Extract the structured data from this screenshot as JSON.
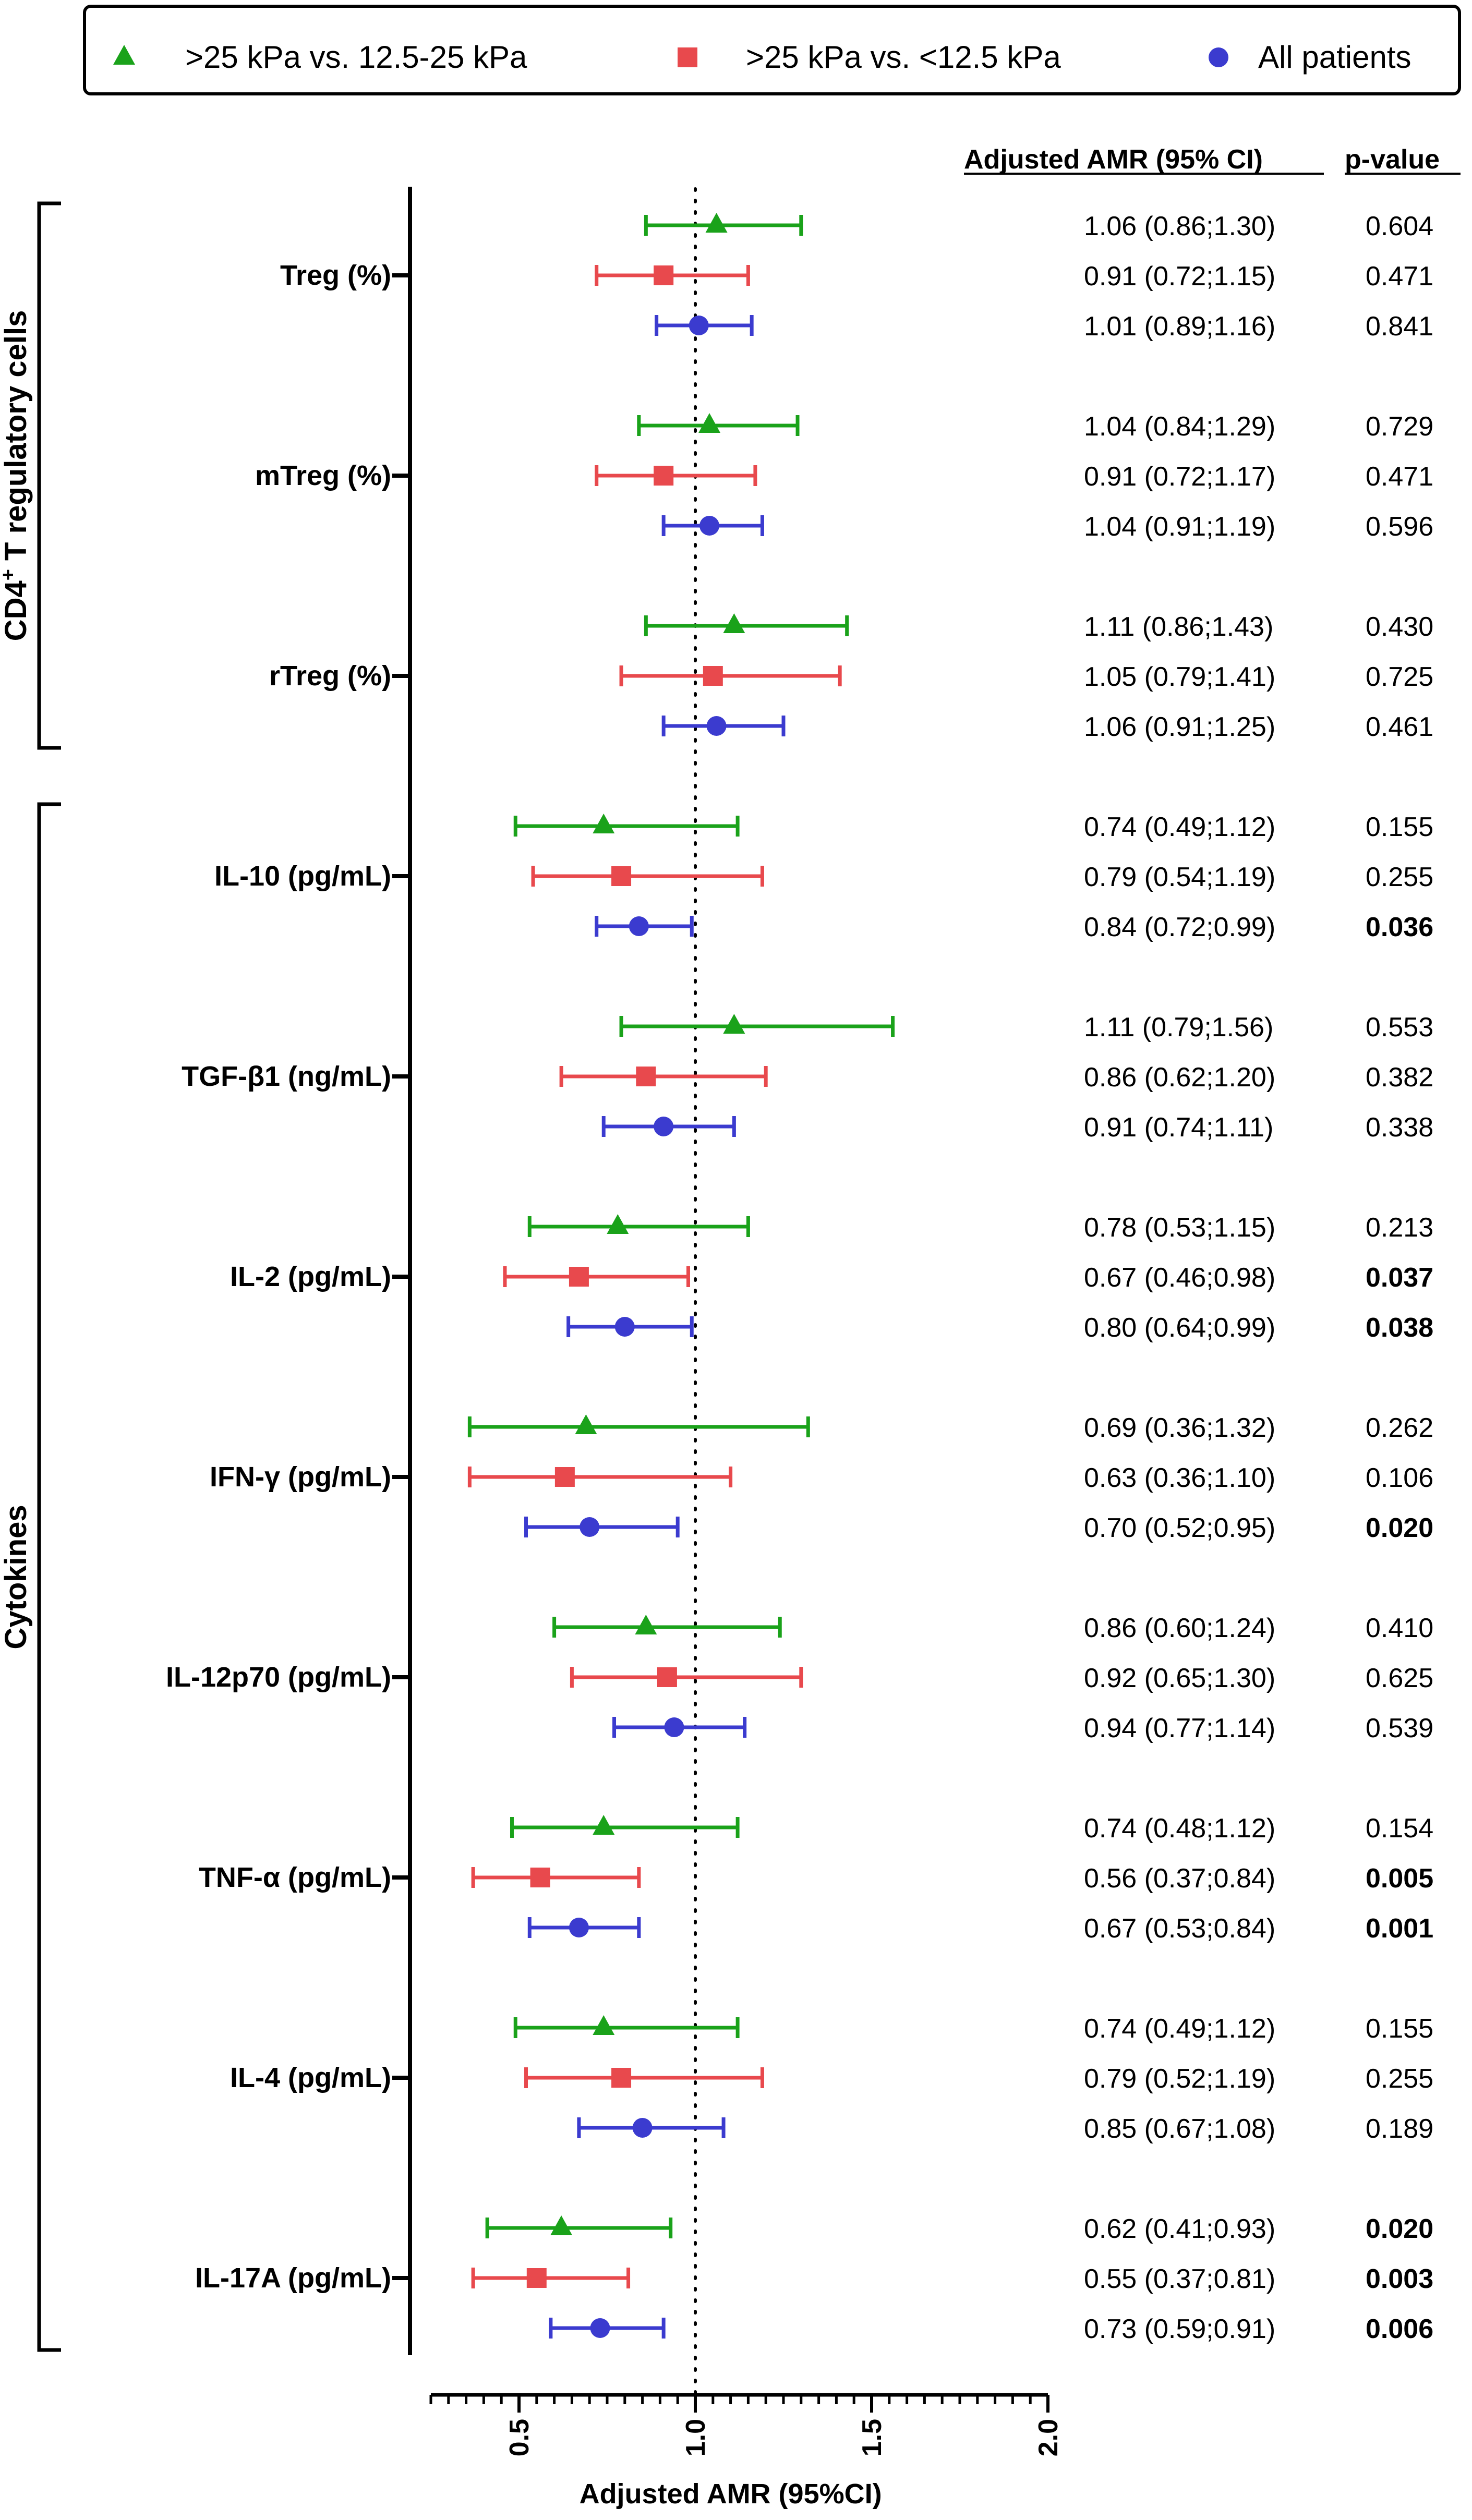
{
  "chart_data": {
    "type": "forest",
    "xlabel": "Adjusted AMR (95%CI)",
    "xlim": [
      0.25,
      2.0
    ],
    "xticks": [
      0.5,
      1.0,
      1.5,
      2.0
    ],
    "xtick_labels": [
      "0.5",
      "1.0",
      "1.5",
      "2.0"
    ],
    "minor_tick_step": 0.05,
    "reference_line": 1.0,
    "column_headers": {
      "amr": "Adjusted AMR (95% CI)",
      "p": "p-value"
    },
    "legend": [
      {
        "name": ">25 kPa vs. 12.5-25 kPa",
        "marker": "triangle",
        "color": "#1aa21a"
      },
      {
        "name": ">25 kPa vs. <12.5 kPa",
        "marker": "square",
        "color": "#e8494d"
      },
      {
        "name": "All patients",
        "marker": "circle",
        "color": "#3b3bcf"
      }
    ],
    "groups": [
      {
        "name": "CD4",
        "sup": "+",
        "rest": " T regulatory cells",
        "n_rows": 3
      },
      {
        "name": "Cytokines",
        "sup": "",
        "rest": "",
        "n_rows": 8
      }
    ],
    "rows": [
      {
        "label": "Treg (%)",
        "estimates": [
          {
            "est": 1.06,
            "lo": 0.86,
            "hi": 1.3,
            "text": "1.06 (0.86;1.30)",
            "p": "0.604",
            "sig": false
          },
          {
            "est": 0.91,
            "lo": 0.72,
            "hi": 1.15,
            "text": "0.91 (0.72;1.15)",
            "p": "0.471",
            "sig": false
          },
          {
            "est": 1.01,
            "lo": 0.89,
            "hi": 1.16,
            "text": "1.01 (0.89;1.16)",
            "p": "0.841",
            "sig": false
          }
        ]
      },
      {
        "label": "mTreg (%)",
        "estimates": [
          {
            "est": 1.04,
            "lo": 0.84,
            "hi": 1.29,
            "text": "1.04 (0.84;1.29)",
            "p": "0.729",
            "sig": false
          },
          {
            "est": 0.91,
            "lo": 0.72,
            "hi": 1.17,
            "text": "0.91 (0.72;1.17)",
            "p": "0.471",
            "sig": false
          },
          {
            "est": 1.04,
            "lo": 0.91,
            "hi": 1.19,
            "text": "1.04 (0.91;1.19)",
            "p": "0.596",
            "sig": false
          }
        ]
      },
      {
        "label": "rTreg (%)",
        "estimates": [
          {
            "est": 1.11,
            "lo": 0.86,
            "hi": 1.43,
            "text": "1.11 (0.86;1.43)",
            "p": "0.430",
            "sig": false
          },
          {
            "est": 1.05,
            "lo": 0.79,
            "hi": 1.41,
            "text": "1.05 (0.79;1.41)",
            "p": "0.725",
            "sig": false
          },
          {
            "est": 1.06,
            "lo": 0.91,
            "hi": 1.25,
            "text": "1.06 (0.91;1.25)",
            "p": "0.461",
            "sig": false
          }
        ]
      },
      {
        "label": "IL-10 (pg/mL)",
        "estimates": [
          {
            "est": 0.74,
            "lo": 0.49,
            "hi": 1.12,
            "text": "0.74 (0.49;1.12)",
            "p": "0.155",
            "sig": false
          },
          {
            "est": 0.79,
            "lo": 0.54,
            "hi": 1.19,
            "text": "0.79 (0.54;1.19)",
            "p": "0.255",
            "sig": false
          },
          {
            "est": 0.84,
            "lo": 0.72,
            "hi": 0.99,
            "text": "0.84 (0.72;0.99)",
            "p": "0.036",
            "sig": true
          }
        ]
      },
      {
        "label": "TGF-β1 (ng/mL)",
        "estimates": [
          {
            "est": 1.11,
            "lo": 0.79,
            "hi": 1.56,
            "text": "1.11 (0.79;1.56)",
            "p": "0.553",
            "sig": false
          },
          {
            "est": 0.86,
            "lo": 0.62,
            "hi": 1.2,
            "text": "0.86 (0.62;1.20)",
            "p": "0.382",
            "sig": false
          },
          {
            "est": 0.91,
            "lo": 0.74,
            "hi": 1.11,
            "text": "0.91 (0.74;1.11)",
            "p": "0.338",
            "sig": false
          }
        ]
      },
      {
        "label": "IL-2 (pg/mL)",
        "estimates": [
          {
            "est": 0.78,
            "lo": 0.53,
            "hi": 1.15,
            "text": "0.78 (0.53;1.15)",
            "p": "0.213",
            "sig": false
          },
          {
            "est": 0.67,
            "lo": 0.46,
            "hi": 0.98,
            "text": "0.67 (0.46;0.98)",
            "p": "0.037",
            "sig": true
          },
          {
            "est": 0.8,
            "lo": 0.64,
            "hi": 0.99,
            "text": "0.80 (0.64;0.99)",
            "p": "0.038",
            "sig": true
          }
        ]
      },
      {
        "label": "IFN-γ (pg/mL)",
        "estimates": [
          {
            "est": 0.69,
            "lo": 0.36,
            "hi": 1.32,
            "text": "0.69 (0.36;1.32)",
            "p": "0.262",
            "sig": false
          },
          {
            "est": 0.63,
            "lo": 0.36,
            "hi": 1.1,
            "text": "0.63 (0.36;1.10)",
            "p": "0.106",
            "sig": false
          },
          {
            "est": 0.7,
            "lo": 0.52,
            "hi": 0.95,
            "text": "0.70 (0.52;0.95)",
            "p": "0.020",
            "sig": true
          }
        ]
      },
      {
        "label": "IL-12p70 (pg/mL)",
        "estimates": [
          {
            "est": 0.86,
            "lo": 0.6,
            "hi": 1.24,
            "text": "0.86 (0.60;1.24)",
            "p": "0.410",
            "sig": false
          },
          {
            "est": 0.92,
            "lo": 0.65,
            "hi": 1.3,
            "text": "0.92 (0.65;1.30)",
            "p": "0.625",
            "sig": false
          },
          {
            "est": 0.94,
            "lo": 0.77,
            "hi": 1.14,
            "text": "0.94 (0.77;1.14)",
            "p": "0.539",
            "sig": false
          }
        ]
      },
      {
        "label": "TNF-α (pg/mL)",
        "estimates": [
          {
            "est": 0.74,
            "lo": 0.48,
            "hi": 1.12,
            "text": "0.74 (0.48;1.12)",
            "p": "0.154",
            "sig": false
          },
          {
            "est": 0.56,
            "lo": 0.37,
            "hi": 0.84,
            "text": "0.56 (0.37;0.84)",
            "p": "0.005",
            "sig": true
          },
          {
            "est": 0.67,
            "lo": 0.53,
            "hi": 0.84,
            "text": "0.67 (0.53;0.84)",
            "p": "0.001",
            "sig": true
          }
        ]
      },
      {
        "label": "IL-4 (pg/mL)",
        "estimates": [
          {
            "est": 0.74,
            "lo": 0.49,
            "hi": 1.12,
            "text": "0.74 (0.49;1.12)",
            "p": "0.155",
            "sig": false
          },
          {
            "est": 0.79,
            "lo": 0.52,
            "hi": 1.19,
            "text": "0.79 (0.52;1.19)",
            "p": "0.255",
            "sig": false
          },
          {
            "est": 0.85,
            "lo": 0.67,
            "hi": 1.08,
            "text": "0.85 (0.67;1.08)",
            "p": "0.189",
            "sig": false
          }
        ]
      },
      {
        "label": "IL-17A (pg/mL)",
        "estimates": [
          {
            "est": 0.62,
            "lo": 0.41,
            "hi": 0.93,
            "text": "0.62 (0.41;0.93)",
            "p": "0.020",
            "sig": true
          },
          {
            "est": 0.55,
            "lo": 0.37,
            "hi": 0.81,
            "text": "0.55 (0.37;0.81)",
            "p": "0.003",
            "sig": true
          },
          {
            "est": 0.73,
            "lo": 0.59,
            "hi": 0.91,
            "text": "0.73 (0.59;0.91)",
            "p": "0.006",
            "sig": true
          }
        ]
      }
    ]
  }
}
